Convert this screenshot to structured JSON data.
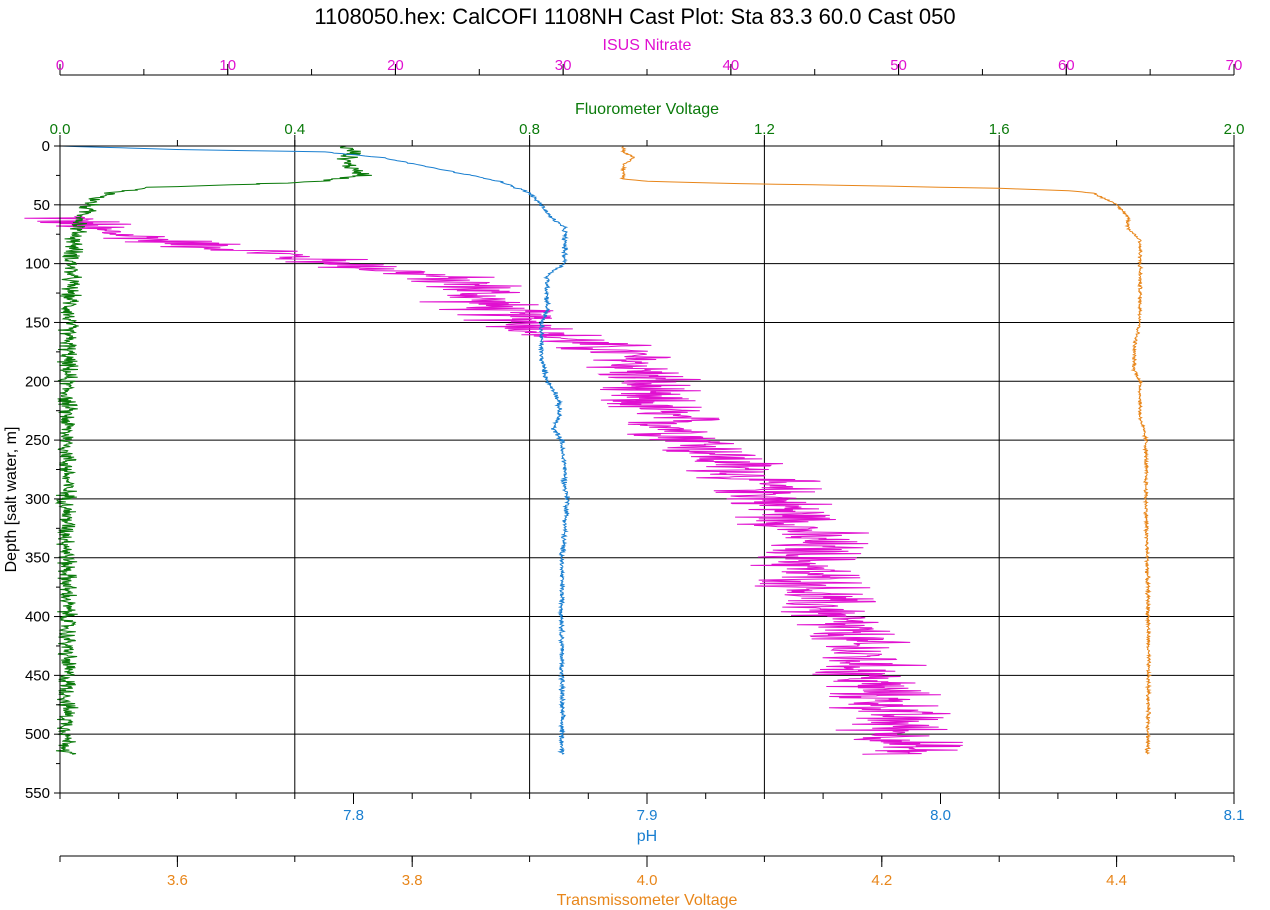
{
  "chart_data": {
    "type": "line",
    "title": "1108050.hex: CalCOFI 1108NH Cast Plot: Sta 83.3  60.0  Cast 050",
    "grid": true,
    "y_axis": {
      "label": "Depth [salt water, m]",
      "range": [
        0,
        550
      ],
      "inverted": true,
      "ticks": [
        "0",
        "50",
        "100",
        "150",
        "200",
        "250",
        "300",
        "350",
        "400",
        "450",
        "500",
        "550"
      ]
    },
    "axes": {
      "nitrate": {
        "label": "ISUS Nitrate",
        "color": "#e010d0",
        "position": "top-outer",
        "range": [
          0,
          70
        ],
        "ticks": [
          "0",
          "10",
          "20",
          "30",
          "40",
          "50",
          "60",
          "70"
        ]
      },
      "fluor": {
        "label": "Fluorometer Voltage",
        "color": "#0a7a0a",
        "position": "top-inner",
        "range": [
          0,
          2
        ],
        "ticks": [
          "0.0",
          "0.4",
          "0.8",
          "1.2",
          "1.6",
          "2.0"
        ]
      },
      "ph": {
        "label": "pH",
        "color": "#1a7fd0",
        "position": "bottom-inner",
        "range": [
          7.7,
          8.1
        ],
        "ticks": [
          "7.8",
          "7.9",
          "8.0",
          "8.1"
        ]
      },
      "trans": {
        "label": "Transmissometer Voltage",
        "color": "#e8861a",
        "position": "bottom-outer",
        "range": [
          3.5,
          4.5
        ],
        "ticks": [
          "3.6",
          "3.8",
          "4.0",
          "4.2",
          "4.4"
        ]
      }
    },
    "series": [
      {
        "name": "ISUS Nitrate",
        "axis": "nitrate",
        "color": "#e010d0",
        "noise": 3.0,
        "points": [
          [
            60,
            0.2
          ],
          [
            70,
            1.5
          ],
          [
            80,
            6
          ],
          [
            90,
            12
          ],
          [
            100,
            17
          ],
          [
            110,
            22
          ],
          [
            120,
            25
          ],
          [
            130,
            25
          ],
          [
            140,
            26
          ],
          [
            150,
            28
          ],
          [
            160,
            29
          ],
          [
            170,
            32
          ],
          [
            180,
            34
          ],
          [
            190,
            34.5
          ],
          [
            200,
            35
          ],
          [
            210,
            34
          ],
          [
            220,
            35
          ],
          [
            230,
            36
          ],
          [
            240,
            37
          ],
          [
            250,
            38
          ],
          [
            260,
            39
          ],
          [
            270,
            40
          ],
          [
            280,
            41
          ],
          [
            290,
            42
          ],
          [
            300,
            42.5
          ],
          [
            310,
            43.5
          ],
          [
            320,
            44
          ],
          [
            330,
            44.5
          ],
          [
            340,
            45
          ],
          [
            350,
            44.5
          ],
          [
            360,
            44.5
          ],
          [
            370,
            45
          ],
          [
            380,
            45
          ],
          [
            390,
            45.5
          ],
          [
            400,
            46
          ],
          [
            410,
            46.5
          ],
          [
            420,
            47
          ],
          [
            430,
            47.5
          ],
          [
            440,
            48
          ],
          [
            450,
            48
          ],
          [
            460,
            48.5
          ],
          [
            470,
            49
          ],
          [
            480,
            49.5
          ],
          [
            490,
            50
          ],
          [
            500,
            50
          ],
          [
            510,
            50.5
          ],
          [
            517,
            50.5
          ]
        ]
      },
      {
        "name": "Fluorometer Voltage",
        "axis": "fluor",
        "color": "#0a7a0a",
        "noise": 0.015,
        "points": [
          [
            0,
            0.48
          ],
          [
            5,
            0.5
          ],
          [
            10,
            0.49
          ],
          [
            15,
            0.49
          ],
          [
            20,
            0.5
          ],
          [
            25,
            0.52
          ],
          [
            30,
            0.45
          ],
          [
            33,
            0.3
          ],
          [
            35,
            0.15
          ],
          [
            40,
            0.09
          ],
          [
            45,
            0.06
          ],
          [
            50,
            0.05
          ],
          [
            60,
            0.04
          ],
          [
            70,
            0.03
          ],
          [
            80,
            0.025
          ],
          [
            100,
            0.02
          ],
          [
            150,
            0.015
          ],
          [
            200,
            0.012
          ],
          [
            300,
            0.012
          ],
          [
            400,
            0.012
          ],
          [
            517,
            0.012
          ]
        ]
      },
      {
        "name": "pH",
        "axis": "ph",
        "color": "#1a7fd0",
        "noise": 0.0008,
        "points": [
          [
            0,
            7.7
          ],
          [
            3,
            7.74
          ],
          [
            5,
            7.79
          ],
          [
            10,
            7.81
          ],
          [
            15,
            7.82
          ],
          [
            20,
            7.83
          ],
          [
            25,
            7.84
          ],
          [
            30,
            7.85
          ],
          [
            40,
            7.86
          ],
          [
            50,
            7.864
          ],
          [
            60,
            7.867
          ],
          [
            70,
            7.872
          ],
          [
            80,
            7.872
          ],
          [
            100,
            7.872
          ],
          [
            110,
            7.866
          ],
          [
            120,
            7.866
          ],
          [
            130,
            7.866
          ],
          [
            140,
            7.866
          ],
          [
            150,
            7.864
          ],
          [
            160,
            7.864
          ],
          [
            170,
            7.864
          ],
          [
            180,
            7.864
          ],
          [
            190,
            7.865
          ],
          [
            200,
            7.866
          ],
          [
            210,
            7.869
          ],
          [
            220,
            7.87
          ],
          [
            230,
            7.87
          ],
          [
            240,
            7.868
          ],
          [
            250,
            7.871
          ],
          [
            260,
            7.871
          ],
          [
            270,
            7.872
          ],
          [
            280,
            7.872
          ],
          [
            290,
            7.872
          ],
          [
            300,
            7.873
          ],
          [
            350,
            7.871
          ],
          [
            400,
            7.871
          ],
          [
            450,
            7.871
          ],
          [
            500,
            7.871
          ],
          [
            517,
            7.871
          ]
        ]
      },
      {
        "name": "Transmissometer Voltage",
        "axis": "trans",
        "color": "#e8861a",
        "noise": 0.0015,
        "points": [
          [
            0,
            3.98
          ],
          [
            5,
            3.98
          ],
          [
            10,
            3.99
          ],
          [
            15,
            3.98
          ],
          [
            20,
            3.98
          ],
          [
            25,
            3.98
          ],
          [
            28,
            3.98
          ],
          [
            30,
            4.0
          ],
          [
            32,
            4.08
          ],
          [
            34,
            4.2
          ],
          [
            36,
            4.3
          ],
          [
            38,
            4.36
          ],
          [
            40,
            4.38
          ],
          [
            45,
            4.39
          ],
          [
            50,
            4.4
          ],
          [
            60,
            4.41
          ],
          [
            70,
            4.41
          ],
          [
            80,
            4.42
          ],
          [
            90,
            4.42
          ],
          [
            100,
            4.42
          ],
          [
            110,
            4.42
          ],
          [
            120,
            4.42
          ],
          [
            130,
            4.42
          ],
          [
            150,
            4.42
          ],
          [
            170,
            4.415
          ],
          [
            190,
            4.415
          ],
          [
            200,
            4.42
          ],
          [
            210,
            4.42
          ],
          [
            230,
            4.42
          ],
          [
            250,
            4.425
          ],
          [
            300,
            4.425
          ],
          [
            350,
            4.426
          ],
          [
            400,
            4.427
          ],
          [
            450,
            4.427
          ],
          [
            500,
            4.427
          ],
          [
            517,
            4.426
          ]
        ]
      }
    ]
  }
}
